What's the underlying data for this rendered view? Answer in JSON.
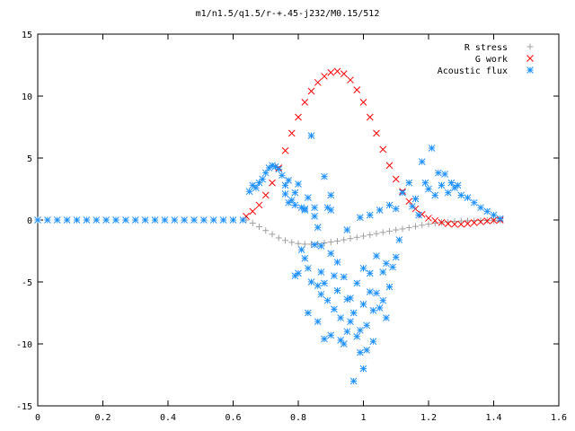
{
  "chart_data": {
    "type": "scatter",
    "title": "m1/n1.5/q1.5/r-+.45-j232/M0.15/512",
    "xlim": [
      0,
      1.6
    ],
    "ylim": [
      -15,
      15
    ],
    "xticks": [
      0,
      0.2,
      0.4,
      0.6,
      0.8,
      1,
      1.2,
      1.4,
      1.6
    ],
    "xtick_labels": [
      "0",
      "0.2",
      "0.4",
      "0.6",
      "0.8",
      "1",
      "1.2",
      "1.4",
      "1.6"
    ],
    "yticks": [
      -15,
      -10,
      -5,
      0,
      5,
      10,
      15
    ],
    "ytick_labels": [
      "-15",
      "-10",
      "-5",
      "0",
      "5",
      "10",
      "15"
    ],
    "legend_position": "top-right",
    "grid": false,
    "series": [
      {
        "name": "R stress",
        "marker": "plus",
        "color": "#a0a0a0",
        "points": [
          [
            0.64,
            0.0
          ],
          [
            0.66,
            -0.25
          ],
          [
            0.68,
            -0.55
          ],
          [
            0.7,
            -0.85
          ],
          [
            0.72,
            -1.15
          ],
          [
            0.74,
            -1.45
          ],
          [
            0.76,
            -1.65
          ],
          [
            0.78,
            -1.8
          ],
          [
            0.8,
            -1.9
          ],
          [
            0.82,
            -1.95
          ],
          [
            0.84,
            -1.95
          ],
          [
            0.86,
            -1.92
          ],
          [
            0.88,
            -1.85
          ],
          [
            0.9,
            -1.78
          ],
          [
            0.92,
            -1.7
          ],
          [
            0.94,
            -1.6
          ],
          [
            0.96,
            -1.5
          ],
          [
            0.98,
            -1.4
          ],
          [
            1.0,
            -1.3
          ],
          [
            1.02,
            -1.2
          ],
          [
            1.04,
            -1.1
          ],
          [
            1.06,
            -1.0
          ],
          [
            1.08,
            -0.9
          ],
          [
            1.1,
            -0.8
          ],
          [
            1.12,
            -0.72
          ],
          [
            1.14,
            -0.62
          ],
          [
            1.16,
            -0.52
          ],
          [
            1.18,
            -0.42
          ],
          [
            1.2,
            -0.34
          ],
          [
            1.22,
            -0.26
          ],
          [
            1.24,
            -0.2
          ],
          [
            1.26,
            -0.15
          ],
          [
            1.28,
            -0.11
          ],
          [
            1.3,
            -0.08
          ],
          [
            1.32,
            -0.06
          ],
          [
            1.34,
            -0.05
          ],
          [
            1.36,
            -0.04
          ],
          [
            1.38,
            -0.03
          ],
          [
            1.4,
            -0.02
          ],
          [
            1.42,
            -0.01
          ]
        ]
      },
      {
        "name": "G work",
        "marker": "cross",
        "color": "#ff0000",
        "points": [
          [
            0.64,
            0.3
          ],
          [
            0.66,
            0.7
          ],
          [
            0.68,
            1.2
          ],
          [
            0.7,
            2.0
          ],
          [
            0.72,
            3.0
          ],
          [
            0.74,
            4.2
          ],
          [
            0.76,
            5.6
          ],
          [
            0.78,
            7.0
          ],
          [
            0.8,
            8.3
          ],
          [
            0.82,
            9.5
          ],
          [
            0.84,
            10.4
          ],
          [
            0.86,
            11.1
          ],
          [
            0.88,
            11.6
          ],
          [
            0.9,
            11.9
          ],
          [
            0.92,
            12.0
          ],
          [
            0.94,
            11.8
          ],
          [
            0.96,
            11.3
          ],
          [
            0.98,
            10.5
          ],
          [
            1.0,
            9.5
          ],
          [
            1.02,
            8.3
          ],
          [
            1.04,
            7.0
          ],
          [
            1.06,
            5.7
          ],
          [
            1.08,
            4.4
          ],
          [
            1.1,
            3.3
          ],
          [
            1.12,
            2.3
          ],
          [
            1.14,
            1.5
          ],
          [
            1.16,
            0.9
          ],
          [
            1.18,
            0.45
          ],
          [
            1.2,
            0.15
          ],
          [
            1.22,
            -0.05
          ],
          [
            1.24,
            -0.2
          ],
          [
            1.26,
            -0.3
          ],
          [
            1.28,
            -0.35
          ],
          [
            1.3,
            -0.35
          ],
          [
            1.32,
            -0.3
          ],
          [
            1.34,
            -0.22
          ],
          [
            1.36,
            -0.15
          ],
          [
            1.38,
            -0.08
          ],
          [
            1.4,
            -0.03
          ],
          [
            1.42,
            0.0
          ]
        ]
      },
      {
        "name": "Acoustic flux",
        "marker": "star",
        "color": "#1e90ff",
        "points": [
          [
            0.0,
            0.0
          ],
          [
            0.03,
            0.0
          ],
          [
            0.06,
            0.0
          ],
          [
            0.09,
            0.0
          ],
          [
            0.12,
            0.0
          ],
          [
            0.15,
            0.0
          ],
          [
            0.18,
            0.0
          ],
          [
            0.21,
            0.0
          ],
          [
            0.24,
            0.0
          ],
          [
            0.27,
            0.0
          ],
          [
            0.3,
            0.0
          ],
          [
            0.33,
            0.0
          ],
          [
            0.36,
            0.0
          ],
          [
            0.39,
            0.0
          ],
          [
            0.42,
            0.0
          ],
          [
            0.45,
            0.0
          ],
          [
            0.48,
            0.0
          ],
          [
            0.51,
            0.0
          ],
          [
            0.54,
            0.0
          ],
          [
            0.57,
            0.0
          ],
          [
            0.6,
            0.0
          ],
          [
            0.63,
            0.0
          ],
          [
            0.65,
            2.3
          ],
          [
            0.66,
            2.8
          ],
          [
            0.67,
            2.6
          ],
          [
            0.68,
            3.0
          ],
          [
            0.69,
            3.3
          ],
          [
            0.7,
            3.8
          ],
          [
            0.71,
            4.2
          ],
          [
            0.72,
            4.4
          ],
          [
            0.73,
            4.3
          ],
          [
            0.74,
            4.1
          ],
          [
            0.75,
            3.6
          ],
          [
            0.76,
            2.8
          ],
          [
            0.77,
            3.2
          ],
          [
            0.78,
            1.6
          ],
          [
            0.79,
            2.2
          ],
          [
            0.8,
            2.9
          ],
          [
            0.81,
            1.0
          ],
          [
            0.82,
            0.8
          ],
          [
            0.83,
            1.8
          ],
          [
            0.84,
            6.8
          ],
          [
            0.85,
            1.0
          ],
          [
            0.86,
            -0.6
          ],
          [
            0.87,
            -2.1
          ],
          [
            0.88,
            3.5
          ],
          [
            0.89,
            1.0
          ],
          [
            0.9,
            2.0
          ],
          [
            0.76,
            2.1
          ],
          [
            0.77,
            1.4
          ],
          [
            0.79,
            1.2
          ],
          [
            0.82,
            0.9
          ],
          [
            0.85,
            0.3
          ],
          [
            0.9,
            0.8
          ],
          [
            0.95,
            -0.8
          ],
          [
            0.99,
            0.2
          ],
          [
            1.02,
            0.4
          ],
          [
            1.05,
            0.8
          ],
          [
            1.08,
            1.2
          ],
          [
            1.1,
            0.9
          ],
          [
            1.12,
            2.2
          ],
          [
            1.14,
            3.0
          ],
          [
            1.15,
            1.1
          ],
          [
            1.16,
            1.7
          ],
          [
            1.17,
            0.4
          ],
          [
            1.18,
            4.7
          ],
          [
            1.19,
            3.0
          ],
          [
            1.2,
            2.5
          ],
          [
            1.21,
            5.8
          ],
          [
            1.22,
            2.0
          ],
          [
            1.23,
            3.8
          ],
          [
            1.24,
            2.8
          ],
          [
            1.25,
            3.7
          ],
          [
            1.26,
            2.2
          ],
          [
            1.27,
            3.0
          ],
          [
            1.28,
            2.6
          ],
          [
            1.29,
            2.8
          ],
          [
            1.3,
            2.0
          ],
          [
            1.32,
            1.8
          ],
          [
            1.34,
            1.4
          ],
          [
            1.36,
            1.0
          ],
          [
            1.38,
            0.7
          ],
          [
            1.4,
            0.4
          ],
          [
            1.42,
            0.1
          ],
          [
            0.79,
            -4.5
          ],
          [
            0.8,
            -4.3
          ],
          [
            0.82,
            -3.1
          ],
          [
            0.83,
            -7.5
          ],
          [
            0.84,
            -5.0
          ],
          [
            0.85,
            -2.0
          ],
          [
            0.86,
            -8.2
          ],
          [
            0.87,
            -4.2
          ],
          [
            0.88,
            -9.6
          ],
          [
            0.89,
            -6.5
          ],
          [
            0.9,
            -9.3
          ],
          [
            0.91,
            -4.5
          ],
          [
            0.92,
            -5.7
          ],
          [
            0.93,
            -7.9
          ],
          [
            0.94,
            -10.0
          ],
          [
            0.95,
            -6.4
          ],
          [
            0.96,
            -8.2
          ],
          [
            0.97,
            -13.0
          ],
          [
            0.98,
            -9.4
          ],
          [
            0.99,
            -10.7
          ],
          [
            1.0,
            -6.8
          ],
          [
            1.01,
            -8.5
          ],
          [
            1.02,
            -5.8
          ],
          [
            1.03,
            -9.8
          ],
          [
            1.04,
            -5.9
          ],
          [
            1.05,
            -7.1
          ],
          [
            1.06,
            -4.2
          ],
          [
            1.07,
            -3.5
          ],
          [
            1.08,
            -5.4
          ],
          [
            1.09,
            -3.8
          ],
          [
            1.1,
            -3.0
          ],
          [
            1.11,
            -1.6
          ],
          [
            0.81,
            -2.4
          ],
          [
            0.83,
            -3.9
          ],
          [
            0.87,
            -6.0
          ],
          [
            0.88,
            -5.1
          ],
          [
            0.9,
            -2.7
          ],
          [
            0.92,
            -3.4
          ],
          [
            0.94,
            -4.6
          ],
          [
            0.96,
            -6.3
          ],
          [
            0.98,
            -5.1
          ],
          [
            1.0,
            -3.9
          ],
          [
            1.02,
            -4.3
          ],
          [
            1.04,
            -2.9
          ],
          [
            1.06,
            -6.5
          ],
          [
            0.86,
            -5.3
          ],
          [
            0.91,
            -7.2
          ],
          [
            0.95,
            -9.0
          ],
          [
            0.99,
            -8.9
          ],
          [
            1.03,
            -7.3
          ],
          [
            1.0,
            -12.0
          ],
          [
            0.93,
            -9.7
          ],
          [
            0.97,
            -7.5
          ],
          [
            1.01,
            -10.5
          ],
          [
            1.07,
            -7.9
          ]
        ]
      }
    ]
  }
}
